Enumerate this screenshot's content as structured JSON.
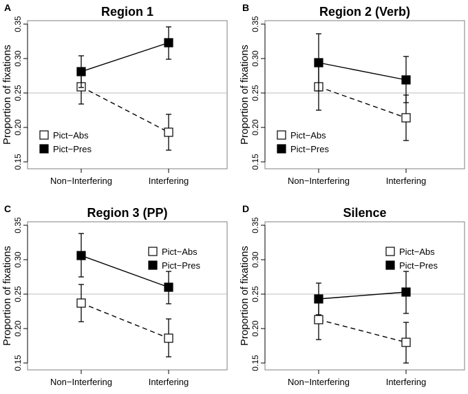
{
  "chart_data": [
    {
      "type": "line",
      "panel_label": "A",
      "title": "Region 1",
      "xlabel": "",
      "ylabel": "Proportion of fixations",
      "categories": [
        "Non−Interfering",
        "Interfering"
      ],
      "ylim": [
        0.14,
        0.355
      ],
      "yticks": [
        "0.15",
        "0.20",
        "0.25",
        "0.30",
        "0.35"
      ],
      "reference_line": 0.25,
      "legend_position": "lower-left",
      "series": [
        {
          "name": "Pict−Abs",
          "marker": "open-square",
          "line": "dashed",
          "values": [
            0.259,
            0.193
          ],
          "err_low": [
            0.234,
            0.167
          ],
          "err_high": [
            0.283,
            0.219
          ]
        },
        {
          "name": "Pict−Pres",
          "marker": "filled-square",
          "line": "solid",
          "values": [
            0.281,
            0.323
          ],
          "err_low": [
            0.258,
            0.299
          ],
          "err_high": [
            0.304,
            0.346
          ]
        }
      ]
    },
    {
      "type": "line",
      "panel_label": "B",
      "title": "Region 2 (Verb)",
      "xlabel": "",
      "ylabel": "Proportion of fixations",
      "categories": [
        "Non−Interfering",
        "Interfering"
      ],
      "ylim": [
        0.14,
        0.355
      ],
      "yticks": [
        "0.15",
        "0.20",
        "0.25",
        "0.30",
        "0.35"
      ],
      "reference_line": 0.25,
      "legend_position": "lower-left",
      "series": [
        {
          "name": "Pict−Abs",
          "marker": "open-square",
          "line": "dashed",
          "values": [
            0.259,
            0.214
          ],
          "err_low": [
            0.225,
            0.181
          ],
          "err_high": [
            0.292,
            0.247
          ]
        },
        {
          "name": "Pict−Pres",
          "marker": "filled-square",
          "line": "solid",
          "values": [
            0.294,
            0.269
          ],
          "err_low": [
            0.253,
            0.236
          ],
          "err_high": [
            0.336,
            0.303
          ]
        }
      ]
    },
    {
      "type": "line",
      "panel_label": "C",
      "title": "Region 3 (PP)",
      "xlabel": "",
      "ylabel": "Proportion of fixations",
      "categories": [
        "Non−Interfering",
        "Interfering"
      ],
      "ylim": [
        0.14,
        0.355
      ],
      "yticks": [
        "0.15",
        "0.20",
        "0.25",
        "0.30",
        "0.35"
      ],
      "reference_line": 0.25,
      "legend_position": "upper-right",
      "series": [
        {
          "name": "Pict−Abs",
          "marker": "open-square",
          "line": "dashed",
          "values": [
            0.237,
            0.186
          ],
          "err_low": [
            0.21,
            0.159
          ],
          "err_high": [
            0.264,
            0.214
          ]
        },
        {
          "name": "Pict−Pres",
          "marker": "filled-square",
          "line": "solid",
          "values": [
            0.306,
            0.26
          ],
          "err_low": [
            0.275,
            0.236
          ],
          "err_high": [
            0.338,
            0.283
          ]
        }
      ]
    },
    {
      "type": "line",
      "panel_label": "D",
      "title": "Silence",
      "xlabel": "",
      "ylabel": "Proportion of fixations",
      "categories": [
        "Non−Interfering",
        "Interfering"
      ],
      "ylim": [
        0.14,
        0.355
      ],
      "yticks": [
        "0.15",
        "0.20",
        "0.25",
        "0.30",
        "0.35"
      ],
      "reference_line": 0.25,
      "legend_position": "upper-right",
      "series": [
        {
          "name": "Pict−Abs",
          "marker": "open-square",
          "line": "dashed",
          "values": [
            0.213,
            0.18
          ],
          "err_low": [
            0.184,
            0.15
          ],
          "err_high": [
            0.241,
            0.209
          ]
        },
        {
          "name": "Pict−Pres",
          "marker": "filled-square",
          "line": "solid",
          "values": [
            0.243,
            0.253
          ],
          "err_low": [
            0.22,
            0.222
          ],
          "err_high": [
            0.266,
            0.283
          ]
        }
      ]
    }
  ]
}
